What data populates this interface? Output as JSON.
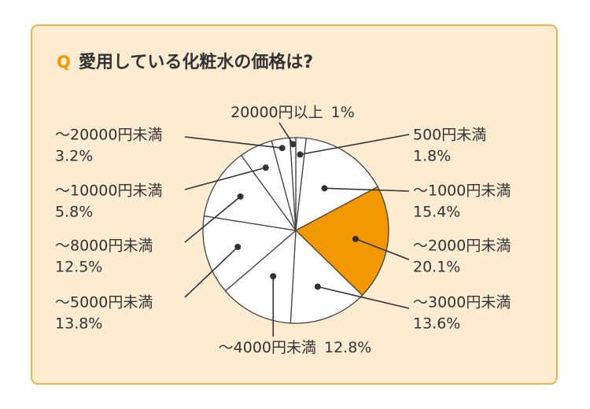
{
  "chart_data": {
    "type": "pie",
    "title_marker": "Q",
    "title": "愛用している化粧水の価格は?",
    "categories": [
      "500円未満",
      "～1000円未満",
      "～2000円未満",
      "～3000円未満",
      "～4000円未満",
      "～5000円未満",
      "～8000円未満",
      "～10000円未満",
      "～20000円未満",
      "20000円以上"
    ],
    "values": [
      1.8,
      15.4,
      20.1,
      13.6,
      12.8,
      13.8,
      12.5,
      5.8,
      3.2,
      1
    ],
    "value_labels": [
      "1.8%",
      "15.4%",
      "20.1%",
      "13.6%",
      "12.8%",
      "13.8%",
      "12.5%",
      "5.8%",
      "3.2%",
      "1%"
    ],
    "colors": [
      "#ffffff",
      "#ffffff",
      "#f39800",
      "#ffffff",
      "#ffffff",
      "#ffffff",
      "#ffffff",
      "#ffffff",
      "#ffffff",
      "#ffffff"
    ]
  }
}
